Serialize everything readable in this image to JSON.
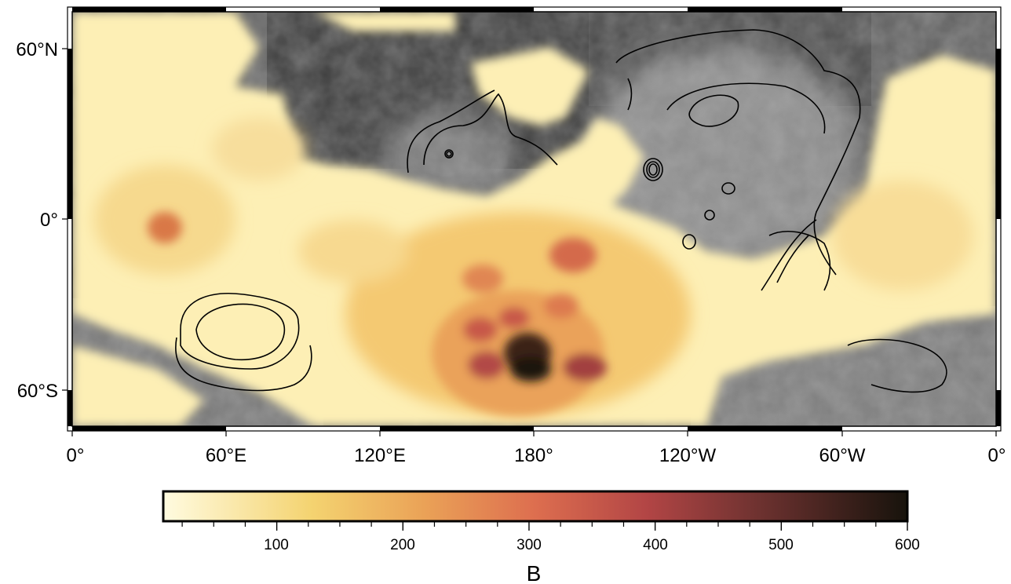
{
  "map": {
    "projection": "equirectangular",
    "layers": [
      "shaded relief (grayscale)",
      "magnetic field magnitude (color, masked where low)",
      "topographic contours"
    ],
    "x_ticks": [
      "0°",
      "60°E",
      "120°E",
      "180°",
      "120°W",
      "60°W",
      "0°"
    ],
    "y_ticks": [
      "60°N",
      "0°",
      "60°S"
    ],
    "lon_range": [
      0,
      360
    ],
    "lat_range": [
      -75,
      75
    ]
  },
  "colorbar": {
    "label": "B",
    "min": 0,
    "max": 600,
    "ticks": [
      "100",
      "200",
      "300",
      "400",
      "500",
      "600"
    ],
    "stops": [
      "#fff9d2",
      "#f2cc5e",
      "#e58e52",
      "#cf5a48",
      "#9d3d3d",
      "#5a2a26",
      "#1a150e"
    ]
  },
  "chart_data": {
    "type": "heatmap",
    "title": "",
    "xlabel": "",
    "ylabel": "",
    "colorbar_label": "B",
    "zlim": [
      0,
      600
    ],
    "notable_regions": [
      {
        "lon": 35,
        "lat": -4,
        "value": 300
      },
      {
        "lon": 175,
        "lat": -50,
        "value": 600
      },
      {
        "lon": 160,
        "lat": -50,
        "value": 450
      },
      {
        "lon": 195,
        "lat": -53,
        "value": 480
      },
      {
        "lon": 195,
        "lat": -12,
        "value": 380
      }
    ]
  }
}
